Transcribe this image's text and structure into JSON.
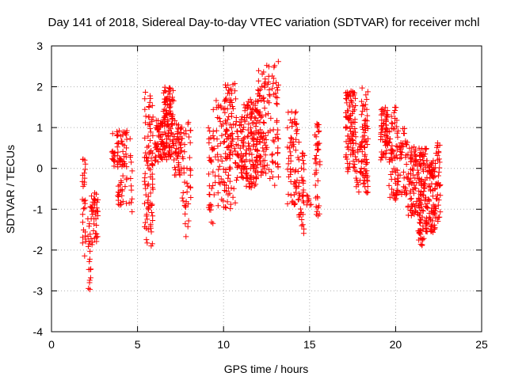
{
  "chart_data": {
    "type": "scatter",
    "title": "Day 141 of 2018, Sidereal Day-to-day VTEC variation (SDTVAR) for receiver mchl",
    "xlabel": "GPS time / hours",
    "ylabel": "SDTVAR / TECUs",
    "xlim": [
      0,
      25
    ],
    "ylim": [
      -4,
      3
    ],
    "xticks": [
      0,
      5,
      10,
      15,
      20,
      25
    ],
    "yticks": [
      -4,
      -3,
      -2,
      -1,
      0,
      1,
      2,
      3
    ],
    "grid": true,
    "marker": "+",
    "color": "#ff0000",
    "clusters": [
      {
        "x0": 1.8,
        "x1": 2.0,
        "ymin": -2.4,
        "ymax": 0.6,
        "n": 28
      },
      {
        "x0": 2.1,
        "x1": 2.3,
        "ymin": -3.1,
        "ymax": -0.9,
        "n": 20
      },
      {
        "x0": 2.3,
        "x1": 2.7,
        "ymin": -1.9,
        "ymax": -0.6,
        "n": 40
      },
      {
        "x0": 3.5,
        "x1": 3.7,
        "ymin": 0.0,
        "ymax": 1.1,
        "n": 12
      },
      {
        "x0": 3.8,
        "x1": 4.4,
        "ymin": -0.9,
        "ymax": 1.0,
        "n": 70
      },
      {
        "x0": 4.5,
        "x1": 4.7,
        "ymin": -1.3,
        "ymax": 0.9,
        "n": 12
      },
      {
        "x0": 5.4,
        "x1": 5.9,
        "ymin": -1.9,
        "ymax": 1.9,
        "n": 90
      },
      {
        "x0": 6.0,
        "x1": 6.5,
        "ymin": 0.1,
        "ymax": 1.2,
        "n": 60
      },
      {
        "x0": 6.5,
        "x1": 7.1,
        "ymin": 0.2,
        "ymax": 2.0,
        "n": 110
      },
      {
        "x0": 7.1,
        "x1": 7.6,
        "ymin": -0.2,
        "ymax": 1.2,
        "n": 50
      },
      {
        "x0": 7.6,
        "x1": 8.1,
        "ymin": -1.7,
        "ymax": 1.3,
        "n": 40
      },
      {
        "x0": 9.1,
        "x1": 9.4,
        "ymin": -1.4,
        "ymax": 1.0,
        "n": 30
      },
      {
        "x0": 9.4,
        "x1": 10.0,
        "ymin": -1.0,
        "ymax": 1.7,
        "n": 40
      },
      {
        "x0": 10.0,
        "x1": 10.7,
        "ymin": -1.0,
        "ymax": 2.1,
        "n": 100
      },
      {
        "x0": 10.7,
        "x1": 11.1,
        "ymin": -0.3,
        "ymax": 1.3,
        "n": 40
      },
      {
        "x0": 11.1,
        "x1": 12.0,
        "ymin": -0.5,
        "ymax": 1.7,
        "n": 150
      },
      {
        "x0": 12.0,
        "x1": 12.5,
        "ymin": -0.3,
        "ymax": 2.4,
        "n": 70
      },
      {
        "x0": 12.5,
        "x1": 13.2,
        "ymin": -0.5,
        "ymax": 2.7,
        "n": 60
      },
      {
        "x0": 13.7,
        "x1": 14.3,
        "ymin": -1.2,
        "ymax": 1.4,
        "n": 60
      },
      {
        "x0": 14.3,
        "x1": 14.7,
        "ymin": -1.6,
        "ymax": 0.7,
        "n": 40
      },
      {
        "x0": 14.8,
        "x1": 15.1,
        "ymin": -1.1,
        "ymax": -0.5,
        "n": 8
      },
      {
        "x0": 15.3,
        "x1": 15.6,
        "ymin": -1.2,
        "ymax": 1.1,
        "n": 40
      },
      {
        "x0": 17.1,
        "x1": 17.7,
        "ymin": -0.1,
        "ymax": 1.9,
        "n": 100
      },
      {
        "x0": 17.7,
        "x1": 18.0,
        "ymin": -0.6,
        "ymax": 0.6,
        "n": 20
      },
      {
        "x0": 18.0,
        "x1": 18.4,
        "ymin": -0.6,
        "ymax": 2.0,
        "n": 70
      },
      {
        "x0": 19.1,
        "x1": 19.6,
        "ymin": 0.2,
        "ymax": 1.5,
        "n": 60
      },
      {
        "x0": 19.6,
        "x1": 20.1,
        "ymin": -0.8,
        "ymax": 1.5,
        "n": 60
      },
      {
        "x0": 20.1,
        "x1": 20.7,
        "ymin": -0.7,
        "ymax": 1.0,
        "n": 50
      },
      {
        "x0": 20.7,
        "x1": 21.3,
        "ymin": -1.2,
        "ymax": 0.6,
        "n": 70
      },
      {
        "x0": 21.3,
        "x1": 21.8,
        "ymin": -1.9,
        "ymax": 0.5,
        "n": 100
      },
      {
        "x0": 21.8,
        "x1": 22.3,
        "ymin": -1.6,
        "ymax": 0.2,
        "n": 80
      },
      {
        "x0": 22.3,
        "x1": 22.6,
        "ymin": -1.3,
        "ymax": 0.7,
        "n": 40
      }
    ]
  }
}
